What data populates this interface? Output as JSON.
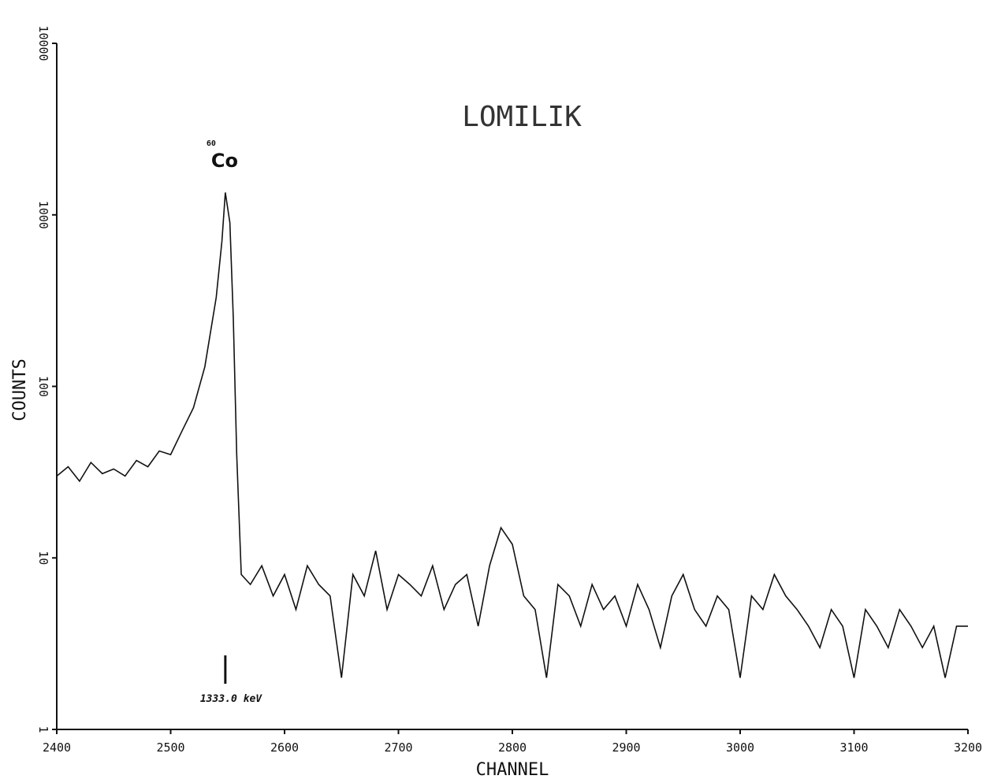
{
  "chart_data": {
    "type": "line",
    "title": "LOMILIK",
    "xlabel": "CHANNEL",
    "ylabel": "COUNTS",
    "log_y": true,
    "grid": false,
    "color": "#111111",
    "x": [
      2400,
      2410,
      2420,
      2430,
      2440,
      2450,
      2460,
      2470,
      2480,
      2490,
      2500,
      2510,
      2520,
      2530,
      2540,
      2545,
      2548,
      2552,
      2555,
      2558,
      2562,
      2570,
      2580,
      2590,
      2600,
      2610,
      2620,
      2630,
      2640,
      2650,
      2660,
      2670,
      2680,
      2690,
      2700,
      2710,
      2720,
      2730,
      2740,
      2750,
      2760,
      2770,
      2780,
      2790,
      2800,
      2810,
      2820,
      2830,
      2840,
      2850,
      2860,
      2870,
      2880,
      2890,
      2900,
      2910,
      2920,
      2930,
      2940,
      2950,
      2960,
      2970,
      2980,
      2990,
      3000,
      3010,
      3020,
      3030,
      3040,
      3050,
      3060,
      3070,
      3080,
      3090,
      3100,
      3110,
      3120,
      3130,
      3140,
      3150,
      3160,
      3170,
      3180,
      3190,
      3200
    ],
    "values": [
      30,
      34,
      28,
      36,
      31,
      33,
      30,
      37,
      34,
      42,
      40,
      55,
      75,
      130,
      330,
      700,
      1350,
      900,
      250,
      40,
      8,
      7,
      9,
      6,
      8,
      5,
      9,
      7,
      6,
      2,
      8,
      6,
      11,
      5,
      8,
      7,
      6,
      9,
      5,
      7,
      8,
      4,
      9,
      15,
      12,
      6,
      5,
      2,
      7,
      6,
      4,
      7,
      5,
      6,
      4,
      7,
      5,
      3,
      6,
      8,
      5,
      4,
      6,
      5,
      2,
      6,
      5,
      8,
      6,
      5,
      4,
      3,
      5,
      4,
      2,
      5,
      4,
      3,
      5,
      4,
      3,
      4,
      2,
      4,
      4
    ],
    "xlim": [
      2400,
      3200
    ],
    "xticks": [
      2400,
      2500,
      2600,
      2700,
      2800,
      2900,
      3000,
      3100,
      3200
    ],
    "ylim": [
      1,
      10000
    ],
    "yticks": [
      1,
      10,
      100,
      1000,
      10000
    ],
    "peak_label": {
      "mass": "60",
      "element": "Co",
      "x": 2548
    },
    "energy_marker": {
      "x": 2548,
      "label": "1333.0 keV"
    }
  }
}
